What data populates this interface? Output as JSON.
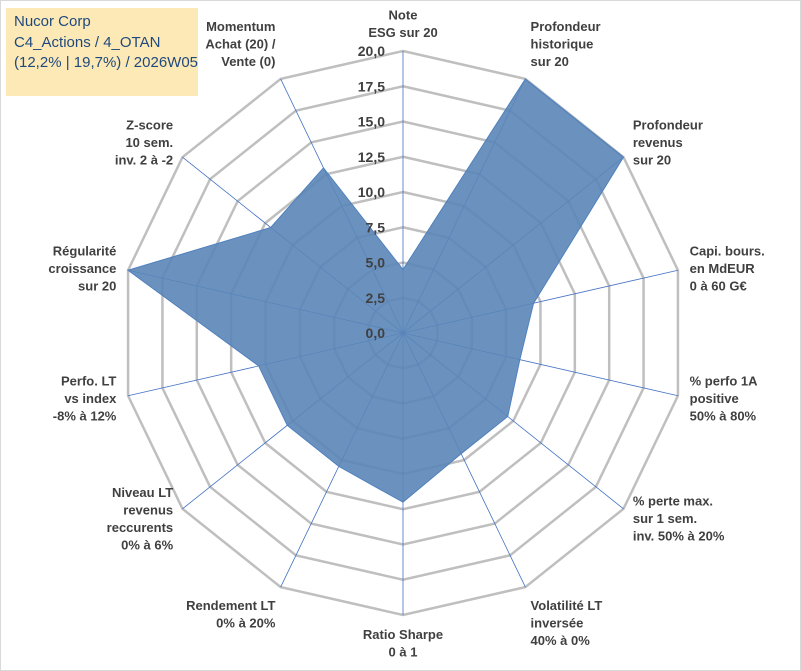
{
  "info": {
    "line1": "Nucor Corp",
    "line2": "C4_Actions / 4_OTAN",
    "line3": "(12,2% | 19,7%) / 2026W05"
  },
  "colors": {
    "fill": "#5b86b8",
    "stroke": "#4f81bd",
    "grid": "#bfbfbf",
    "spoke": "#4472c4",
    "info_bg": "#fde9b6",
    "info_text": "#1f497d"
  },
  "chart_data": {
    "type": "radar",
    "rmin": 0,
    "rmax": 20,
    "ticks": [
      "0,0",
      "2,5",
      "5,0",
      "7,5",
      "10,0",
      "12,5",
      "15,0",
      "17,5",
      "20,0"
    ],
    "tick_values": [
      0,
      2.5,
      5,
      7.5,
      10,
      12.5,
      15,
      17.5,
      20
    ],
    "categories": [
      [
        "Note",
        "ESG sur 20"
      ],
      [
        "Profondeur",
        "historique",
        "sur 20"
      ],
      [
        "Profondeur",
        "revenus",
        "sur 20"
      ],
      [
        "Capi. bours.",
        "en MdEUR",
        "0 à 60 G€"
      ],
      [
        "% perfo 1A",
        "positive",
        "50% à 80%"
      ],
      [
        "% perte max.",
        "sur 1 sem.",
        "inv. 50% à 20%"
      ],
      [
        "Volatilité LT",
        "inversée",
        "40% à 0%"
      ],
      [
        "Ratio Sharpe",
        "0 à 1"
      ],
      [
        "Rendement LT",
        "0% à 20%"
      ],
      [
        "Niveau LT",
        "revenus",
        "reccurents",
        "0% à 6%"
      ],
      [
        "Perfo. LT",
        "vs index",
        "-8% à 12%"
      ],
      [
        "Régularité",
        "croissance",
        "sur 20"
      ],
      [
        "Z-score",
        "10 sem.",
        "inv. 2 à -2"
      ],
      [
        "Momentum",
        "Achat (20) /",
        "Vente (0)"
      ]
    ],
    "series": [
      {
        "name": "Nucor Corp",
        "values": [
          4.5,
          20,
          20,
          9.5,
          8.5,
          9.5,
          9.5,
          12,
          10.5,
          10.5,
          10.5,
          20,
          12,
          13
        ]
      }
    ]
  }
}
